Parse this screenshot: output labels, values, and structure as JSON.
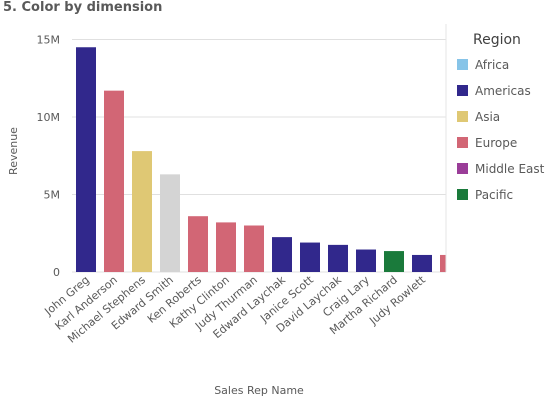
{
  "chart_data": {
    "type": "bar",
    "title": "5. Color by dimension",
    "xlabel": "Sales Rep Name",
    "ylabel": "Revenue",
    "ylim": [
      0,
      16000000
    ],
    "yticks": [
      {
        "value": 0,
        "label": "0"
      },
      {
        "value": 5000000,
        "label": "5M"
      },
      {
        "value": 10000000,
        "label": "10M"
      },
      {
        "value": 15000000,
        "label": "15M"
      }
    ],
    "grid": true,
    "legend": {
      "title": "Region",
      "position": "right",
      "entries": [
        {
          "name": "Africa",
          "color": "#87c4e8"
        },
        {
          "name": "Americas",
          "color": "#31288c"
        },
        {
          "name": "Asia",
          "color": "#dfc874"
        },
        {
          "name": "Europe",
          "color": "#d26675"
        },
        {
          "name": "Middle East",
          "color": "#9a3d98"
        },
        {
          "name": "Pacific",
          "color": "#1a7a3b"
        }
      ]
    },
    "categories": [
      "John Greg",
      "Karl Anderson",
      "Michael Stephens",
      "Edward Smith",
      "Ken Roberts",
      "Kathy Clinton",
      "Judy Thurman",
      "Edward Laychak",
      "Janice Scott",
      "David Laychak",
      "Craig Lary",
      "Martha Richard",
      "Judy Rowlett",
      ""
    ],
    "values": [
      14500000,
      11700000,
      7800000,
      6300000,
      3600000,
      3200000,
      3000000,
      2250000,
      1900000,
      1750000,
      1450000,
      1350000,
      1100000,
      1100000
    ],
    "bar_colors": [
      "#31288c",
      "#d26675",
      "#dfc874",
      "#d4d4d4",
      "#d26675",
      "#d26675",
      "#d26675",
      "#31288c",
      "#31288c",
      "#31288c",
      "#31288c",
      "#1a7a3b",
      "#31288c",
      "#d26675"
    ]
  }
}
